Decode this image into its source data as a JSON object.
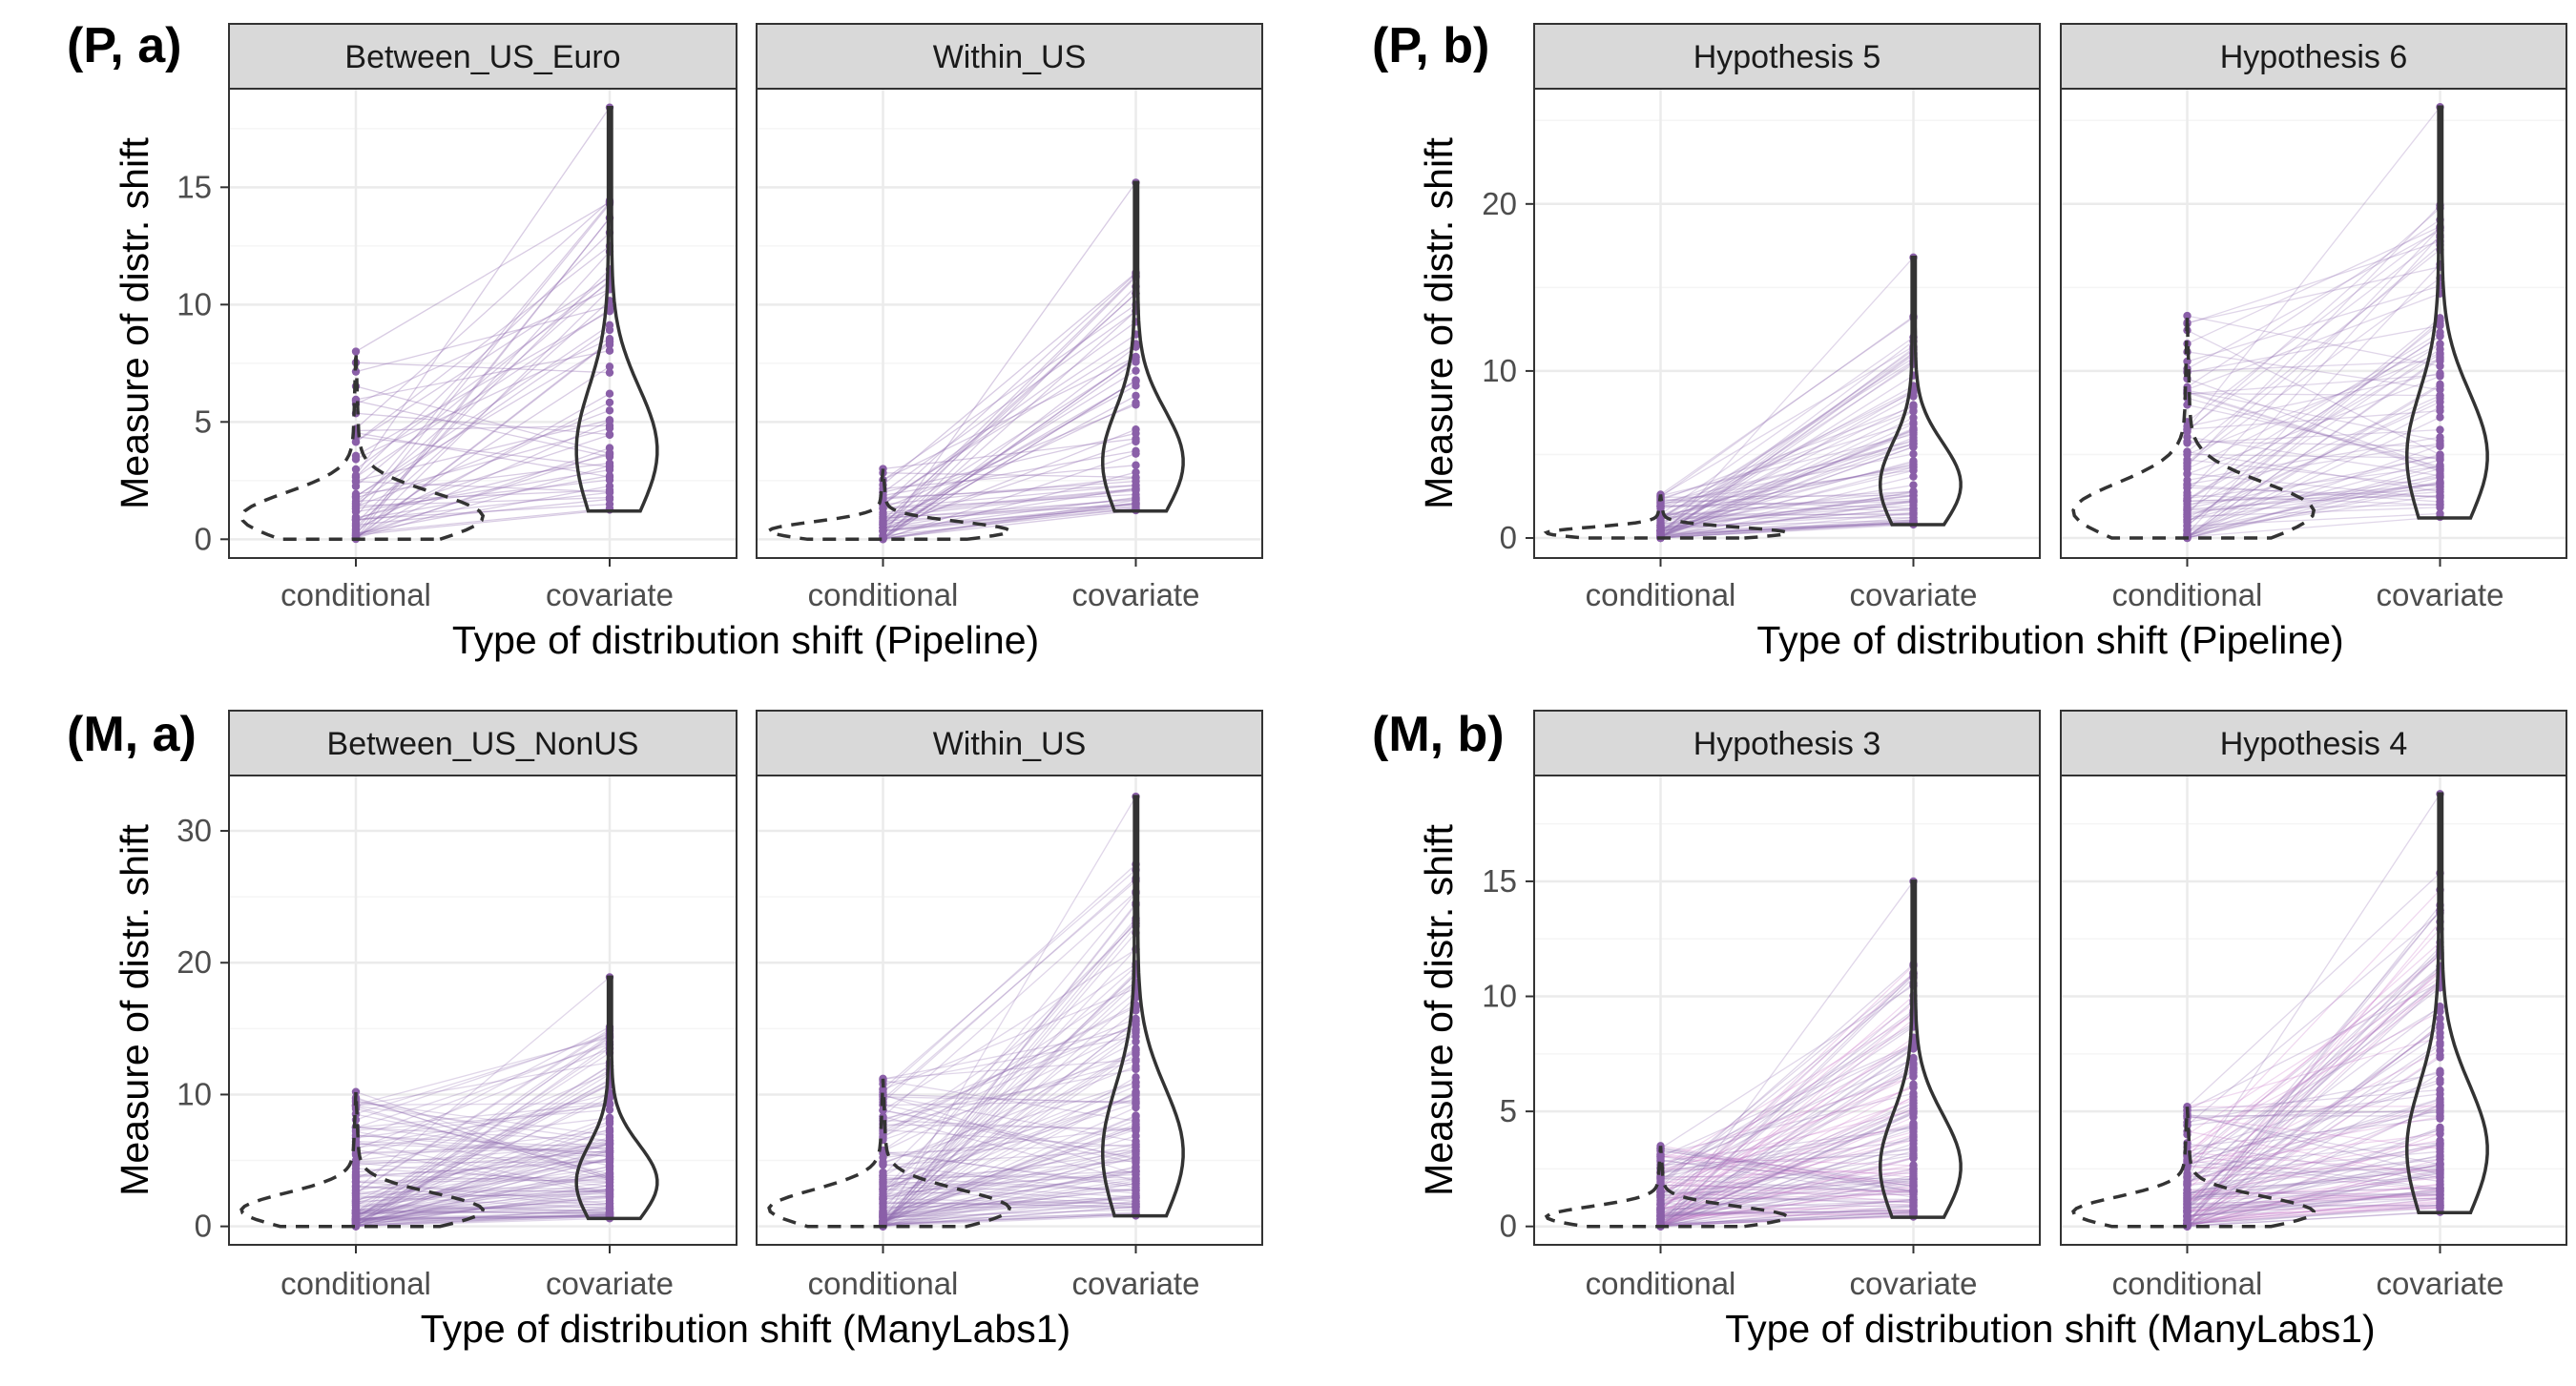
{
  "chart_data": [
    {
      "type": "violin",
      "panel_label": "(P, a)",
      "xlabel": "Type of distribution shift (Pipeline)",
      "ylabel": "Measure of distr. shift",
      "ylim": [
        -0.8,
        19.2
      ],
      "yticks": [
        0,
        5,
        10,
        15
      ],
      "categories": [
        "conditional",
        "covariate"
      ],
      "facets": [
        {
          "name": "Between_US_Euro",
          "conditional_max": 8.0,
          "covariate_min": 1.2,
          "covariate_max": 18.4,
          "n_lines": 60
        },
        {
          "name": "Within_US",
          "conditional_max": 3.0,
          "covariate_min": 1.2,
          "covariate_max": 15.2,
          "n_lines": 60
        }
      ]
    },
    {
      "type": "violin",
      "panel_label": "(P, b)",
      "xlabel": "Type of distribution shift (Pipeline)",
      "ylabel": "Measure of distr. shift",
      "ylim": [
        -1.2,
        26.9
      ],
      "yticks": [
        0,
        10,
        20
      ],
      "categories": [
        "conditional",
        "covariate"
      ],
      "facets": [
        {
          "name": "Hypothesis 5",
          "conditional_max": 2.6,
          "covariate_min": 0.8,
          "covariate_max": 16.8,
          "n_lines": 90
        },
        {
          "name": "Hypothesis 6",
          "conditional_max": 13.3,
          "covariate_min": 1.2,
          "covariate_max": 25.8,
          "n_lines": 90
        }
      ]
    },
    {
      "type": "violin",
      "panel_label": "(M, a)",
      "xlabel": "Type of distribution shift (ManyLabs1)",
      "ylabel": "Measure of distr. shift",
      "ylim": [
        -1.4,
        34.2
      ],
      "yticks": [
        0,
        10,
        20,
        30
      ],
      "categories": [
        "conditional",
        "covariate"
      ],
      "facets": [
        {
          "name": "Between_US_NonUS",
          "conditional_max": 10.2,
          "covariate_min": 0.6,
          "covariate_max": 18.9,
          "n_lines": 140
        },
        {
          "name": "Within_US",
          "conditional_max": 11.2,
          "covariate_min": 0.8,
          "covariate_max": 32.6,
          "n_lines": 140
        }
      ]
    },
    {
      "type": "violin",
      "panel_label": "(M, b)",
      "xlabel": "Type of distribution shift (ManyLabs1)",
      "ylabel": "Measure of distr. shift",
      "ylim": [
        -0.8,
        19.6
      ],
      "yticks": [
        0,
        5,
        10,
        15
      ],
      "categories": [
        "conditional",
        "covariate"
      ],
      "facets": [
        {
          "name": "Hypothesis 3",
          "conditional_max": 3.5,
          "covariate_min": 0.4,
          "covariate_max": 15.0,
          "n_lines": 140
        },
        {
          "name": "Hypothesis 4",
          "conditional_max": 5.2,
          "covariate_min": 0.6,
          "covariate_max": 18.8,
          "n_lines": 140
        }
      ]
    }
  ],
  "colors": {
    "points": "#8a5fa8",
    "lines": "#8e6bb0",
    "lines_pink": "#c878c8",
    "strip_fill": "#d9d9d9",
    "grid_major": "#ebebeb",
    "grid_minor": "#f5f5f5",
    "panel_border": "#333333",
    "violin": "#333333"
  }
}
